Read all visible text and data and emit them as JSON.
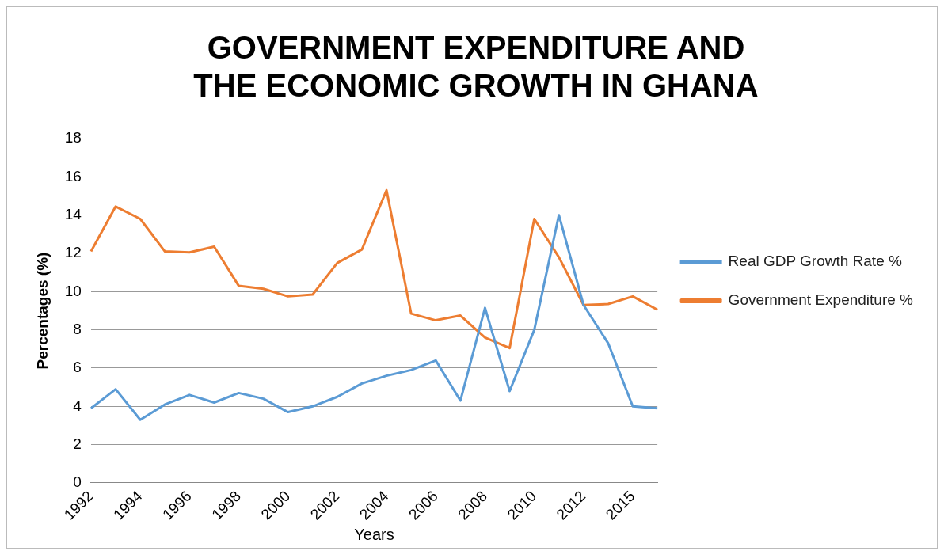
{
  "chart_data": {
    "type": "line",
    "title": "GOVERNMENT EXPENDITURE AND THE ECONOMIC GROWTH IN GHANA",
    "xlabel": "Years",
    "ylabel": "Percentages (%)",
    "categories": [
      "1992",
      null,
      "1994",
      null,
      "1996",
      null,
      "1998",
      null,
      "2000",
      null,
      "2002",
      null,
      "2004",
      null,
      "2006",
      null,
      "2008",
      null,
      "2010",
      null,
      "2012",
      null,
      "2015",
      null
    ],
    "series": [
      {
        "name": "Real GDP Growth Rate %",
        "color": "#5b9bd5",
        "values": [
          3.9,
          4.9,
          3.3,
          4.1,
          4.6,
          4.2,
          4.7,
          4.4,
          3.7,
          4.0,
          4.5,
          5.2,
          5.6,
          5.9,
          6.4,
          4.3,
          9.15,
          4.8,
          8.0,
          14.0,
          9.3,
          7.3,
          4.0,
          3.9
        ]
      },
      {
        "name": "Government Expenditure %",
        "color": "#ed7d31",
        "values": [
          12.1,
          14.45,
          13.8,
          12.1,
          12.05,
          12.35,
          10.3,
          10.15,
          9.75,
          9.85,
          11.5,
          12.2,
          15.3,
          8.85,
          8.5,
          8.75,
          7.6,
          7.05,
          13.8,
          11.8,
          9.3,
          9.35,
          9.75,
          9.05
        ]
      }
    ],
    "ylim": [
      0,
      18
    ],
    "yticks": [
      0,
      2,
      4,
      6,
      8,
      10,
      12,
      14,
      16,
      18
    ],
    "grid": "y",
    "legend": "right",
    "marker": "none",
    "line_style": "solid"
  }
}
